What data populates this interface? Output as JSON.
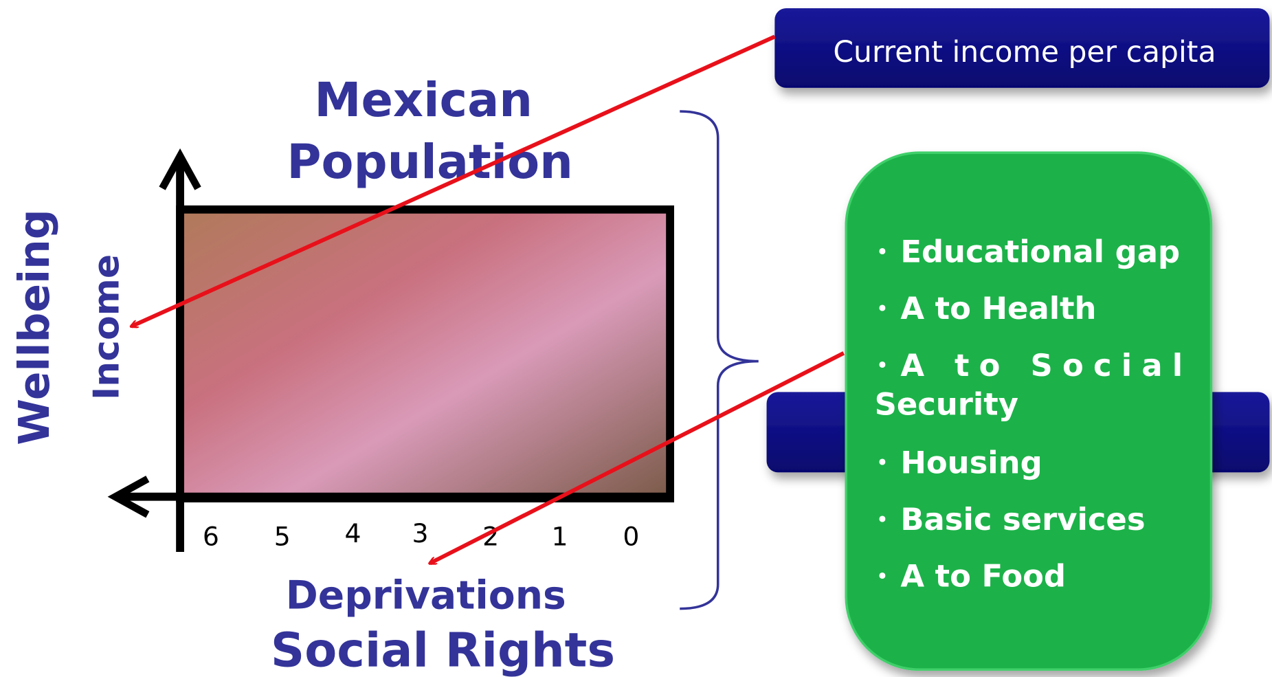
{
  "title_lines": [
    "Mexican",
    "Population"
  ],
  "y_axis_labels": {
    "outer": "Wellbeing",
    "inner": "Income"
  },
  "x_axis_labels": {
    "inner": "Deprivations",
    "outer": "Social Rights"
  },
  "x_ticks": [
    "6",
    "5",
    "4",
    "3",
    "2",
    "1",
    "0"
  ],
  "income_box": "Current income per capita",
  "deprivations_list": [
    "Educational gap",
    "A to Health",
    "A to Social Security",
    "Housing",
    "Basic services",
    "A to Food"
  ]
}
